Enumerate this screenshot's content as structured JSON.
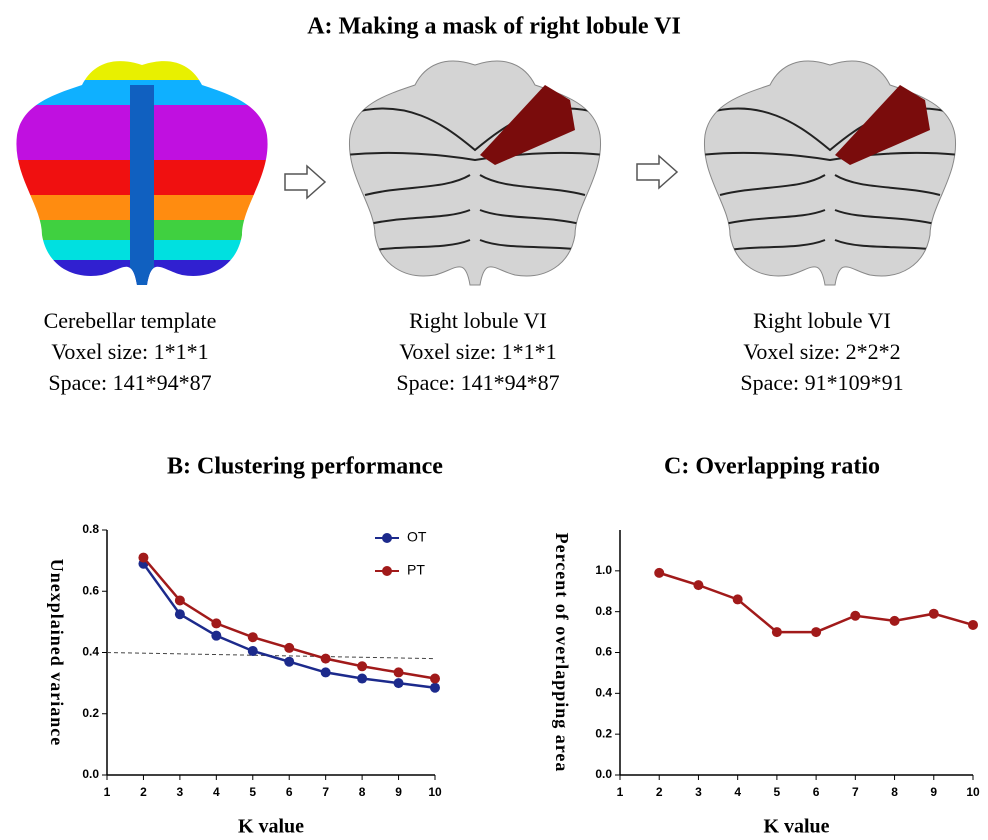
{
  "panel_a": {
    "title": "A: Making a mask of right lobule VI",
    "captions": [
      [
        "Cerebellar template",
        "Voxel size: 1*1*1",
        "Space: 141*94*87"
      ],
      [
        "Right lobule VI",
        "Voxel size: 1*1*1",
        "Space: 141*94*87"
      ],
      [
        "Right lobule VI",
        "Voxel size: 2*2*2",
        "Space: 91*109*91"
      ]
    ]
  },
  "chart_data": [
    {
      "type": "line",
      "title": "B: Clustering performance",
      "xlabel": "K value",
      "ylabel": "Unexplained variance",
      "x": [
        2,
        3,
        4,
        5,
        6,
        7,
        8,
        9,
        10
      ],
      "series": [
        {
          "name": "OT",
          "color": "#1c2a8c",
          "values": [
            0.69,
            0.525,
            0.455,
            0.405,
            0.37,
            0.335,
            0.315,
            0.3,
            0.285
          ]
        },
        {
          "name": "PT",
          "color": "#a11a1a",
          "values": [
            0.71,
            0.57,
            0.495,
            0.45,
            0.415,
            0.38,
            0.355,
            0.335,
            0.315
          ]
        }
      ],
      "reference_line": {
        "x": [
          1,
          10
        ],
        "values": [
          0.4,
          0.38
        ]
      },
      "xlim": [
        1,
        10
      ],
      "xticks": [
        1,
        2,
        3,
        4,
        5,
        6,
        7,
        8,
        9,
        10
      ],
      "ylim": [
        0,
        0.8
      ],
      "yticks": [
        {
          "value": 0,
          "label": "0.0"
        },
        0.2,
        0.4,
        0.6,
        0.8
      ],
      "legend": "top-right"
    },
    {
      "type": "line",
      "title": "C: Overlapping ratio",
      "xlabel": "K value",
      "ylabel": "Percent of overlapping area",
      "x": [
        2,
        3,
        4,
        5,
        6,
        7,
        8,
        9,
        10
      ],
      "series": [
        {
          "name": null,
          "color": "#a11a1a",
          "values": [
            0.99,
            0.93,
            0.86,
            0.7,
            0.7,
            0.78,
            0.755,
            0.79,
            0.735
          ]
        }
      ],
      "xlim": [
        1,
        10
      ],
      "xticks": [
        1,
        2,
        3,
        4,
        5,
        6,
        7,
        8,
        9,
        10
      ],
      "ylim": [
        0,
        1.2
      ],
      "yticks": [
        {
          "value": 0,
          "label": "0.0"
        },
        0.2,
        0.4,
        0.6,
        0.8,
        {
          "value": 1,
          "label": "1.0"
        }
      ]
    }
  ]
}
